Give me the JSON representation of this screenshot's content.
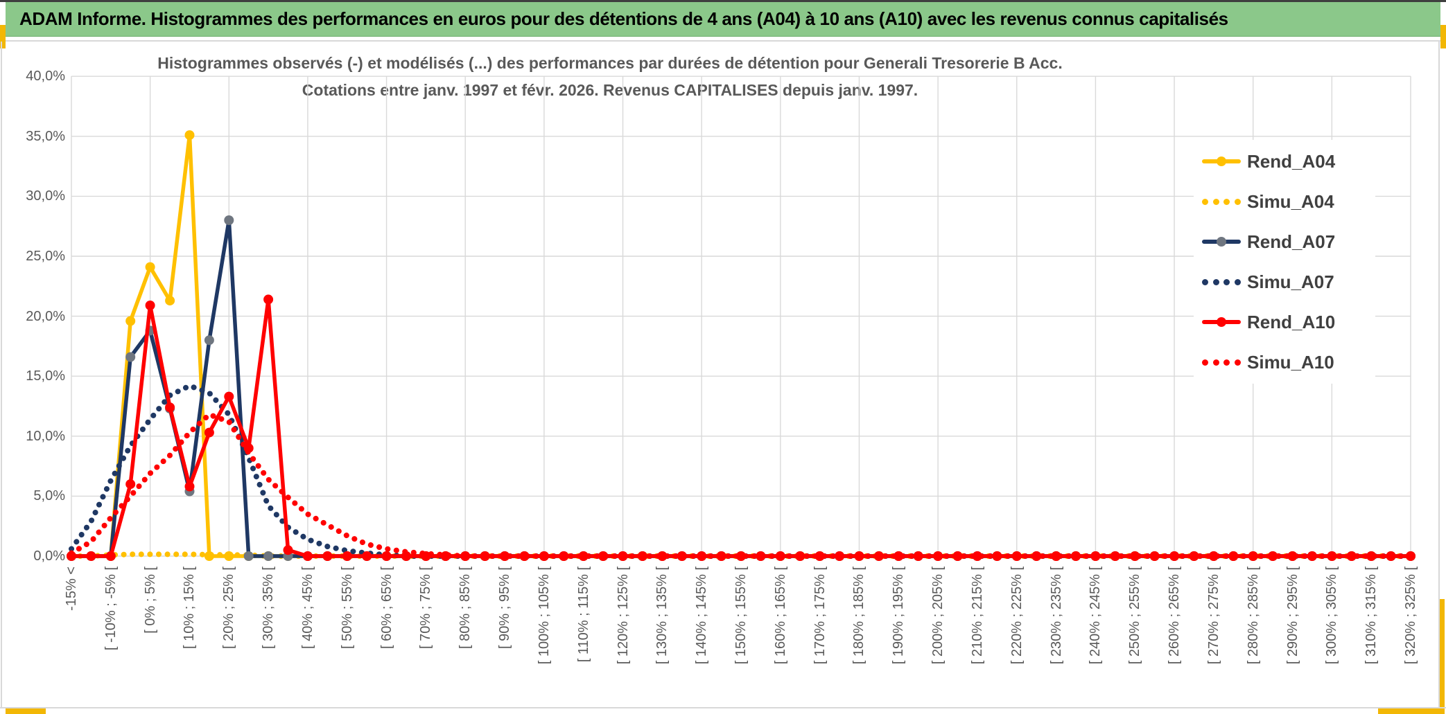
{
  "banner": {
    "title": "ADAM Informe. Histogrammes des performances en euros pour des détentions de 4 ans (A04) à 10 ans (A10) avec les revenus connus capitalisés"
  },
  "chart": {
    "title_line1": "Histogrammes observés (-) et modélisés (...) des performances par durées de détention pour Generali Tresorerie B Acc.",
    "title_line2": "Cotations entre janv. 1997 et févr. 2026. Revenus CAPITALISES depuis janv. 1997."
  },
  "colors": {
    "grid": "#D9D9D9",
    "axis_text": "#595959",
    "legend_text": "#404040",
    "banner_green": "#8BC88A",
    "gold_border": "#F2B705",
    "gold_series": "#FFC000",
    "navy_series": "#1F3864",
    "navy_marker": "#6F7680",
    "red_series": "#FF0000"
  },
  "chart_data": {
    "type": "line",
    "title": "Histogrammes observés (-) et modélisés (...) des performances par durées de détention pour Generali Tresorerie B Acc. Cotations entre janv. 1997 et févr. 2026. Revenus CAPITALISES depuis janv. 1997.",
    "xlabel": "",
    "ylabel": "",
    "ylim": [
      0,
      40
    ],
    "y_tick_labels": [
      "40,0%",
      "35,0%",
      "30,0%",
      "25,0%",
      "20,0%",
      "15,0%",
      "10,0%",
      "5,0%",
      "0,0%"
    ],
    "y_ticks_pct": [
      40,
      35,
      30,
      25,
      20,
      15,
      10,
      5,
      0
    ],
    "n_bins": 69,
    "bin_width_pct": 5,
    "label_every_n_bins": 2,
    "grid": "both",
    "legend_position": "right",
    "x_labels_visible": [
      "-15% <",
      "[ -10% ; -5% [",
      "[ 0% ; 5% [",
      "[ 10% ; 15% [",
      "[ 20% ; 25% [",
      "[ 30% ; 35% [",
      "[ 40% ; 45% [",
      "[ 50% ; 55% [",
      "[ 60% ; 65% [",
      "[ 70% ; 75% [",
      "[ 80% ; 85% [",
      "[ 90% ; 95% [",
      "[ 100% ; 105% [",
      "[ 110% ; 115% [",
      "[ 120% ; 125% [",
      "[ 130% ; 135% [",
      "[ 140% ; 145% [",
      "[ 150% ; 155% [",
      "[ 160% ; 165% [",
      "[ 170% ; 175% [",
      "[ 180% ; 185% [",
      "[ 190% ; 195% [",
      "[ 200% ; 205% [",
      "[ 210% ; 215% [",
      "[ 220% ; 225% [",
      "[ 230% ; 235% [",
      "[ 240% ; 245% [",
      "[ 250% ; 255% [",
      "[ 260% ; 265% [",
      "[ 270% ; 275% [",
      "[ 280% ; 285% [",
      "[ 290% ; 295% [",
      "[ 300% ; 305% [",
      "[ 310% ; 315% [",
      "[ 320% ; 325% ["
    ],
    "series": [
      {
        "name": "Rend_A04",
        "color": "#FFC000",
        "marker_color": "#FFC000",
        "style": "solid",
        "values": [
          0,
          0,
          0,
          19.6,
          24.1,
          21.3,
          35.1,
          0,
          0,
          0
        ]
      },
      {
        "name": "Simu_A04",
        "color": "#FFC000",
        "style": "dotted",
        "values": [
          0,
          0,
          0.1,
          0.15,
          0.15,
          0.15,
          0.15,
          0.12,
          0.1,
          0.08,
          0
        ]
      },
      {
        "name": "Rend_A07",
        "color": "#1F3864",
        "marker_color": "#6F7680",
        "style": "solid",
        "values": [
          0,
          0,
          0,
          16.6,
          18.8,
          12.3,
          5.4,
          18.0,
          28.0,
          0,
          0,
          0
        ]
      },
      {
        "name": "Simu_A07",
        "color": "#1F3864",
        "style": "dotted",
        "values": [
          0.6,
          2.9,
          6.3,
          9.2,
          11.4,
          13.4,
          14.2,
          13.6,
          11.8,
          8.2,
          4.2,
          2.4,
          1.4,
          0.8,
          0.45,
          0.25,
          0.1,
          0
        ]
      },
      {
        "name": "Rend_A10",
        "color": "#FF0000",
        "marker_color": "#FF0000",
        "style": "solid",
        "values": [
          0,
          0,
          0,
          6.0,
          20.9,
          12.4,
          5.8,
          10.3,
          13.3,
          9.0,
          21.4,
          0.5,
          0,
          0
        ]
      },
      {
        "name": "Simu_A10",
        "color": "#FF0000",
        "style": "dotted",
        "values": [
          0.25,
          1.2,
          3.2,
          5.0,
          6.9,
          8.4,
          10.3,
          11.8,
          11.2,
          8.6,
          6.4,
          4.9,
          3.5,
          2.6,
          1.7,
          1.0,
          0.6,
          0.35,
          0.2,
          0.1,
          0
        ]
      }
    ]
  }
}
